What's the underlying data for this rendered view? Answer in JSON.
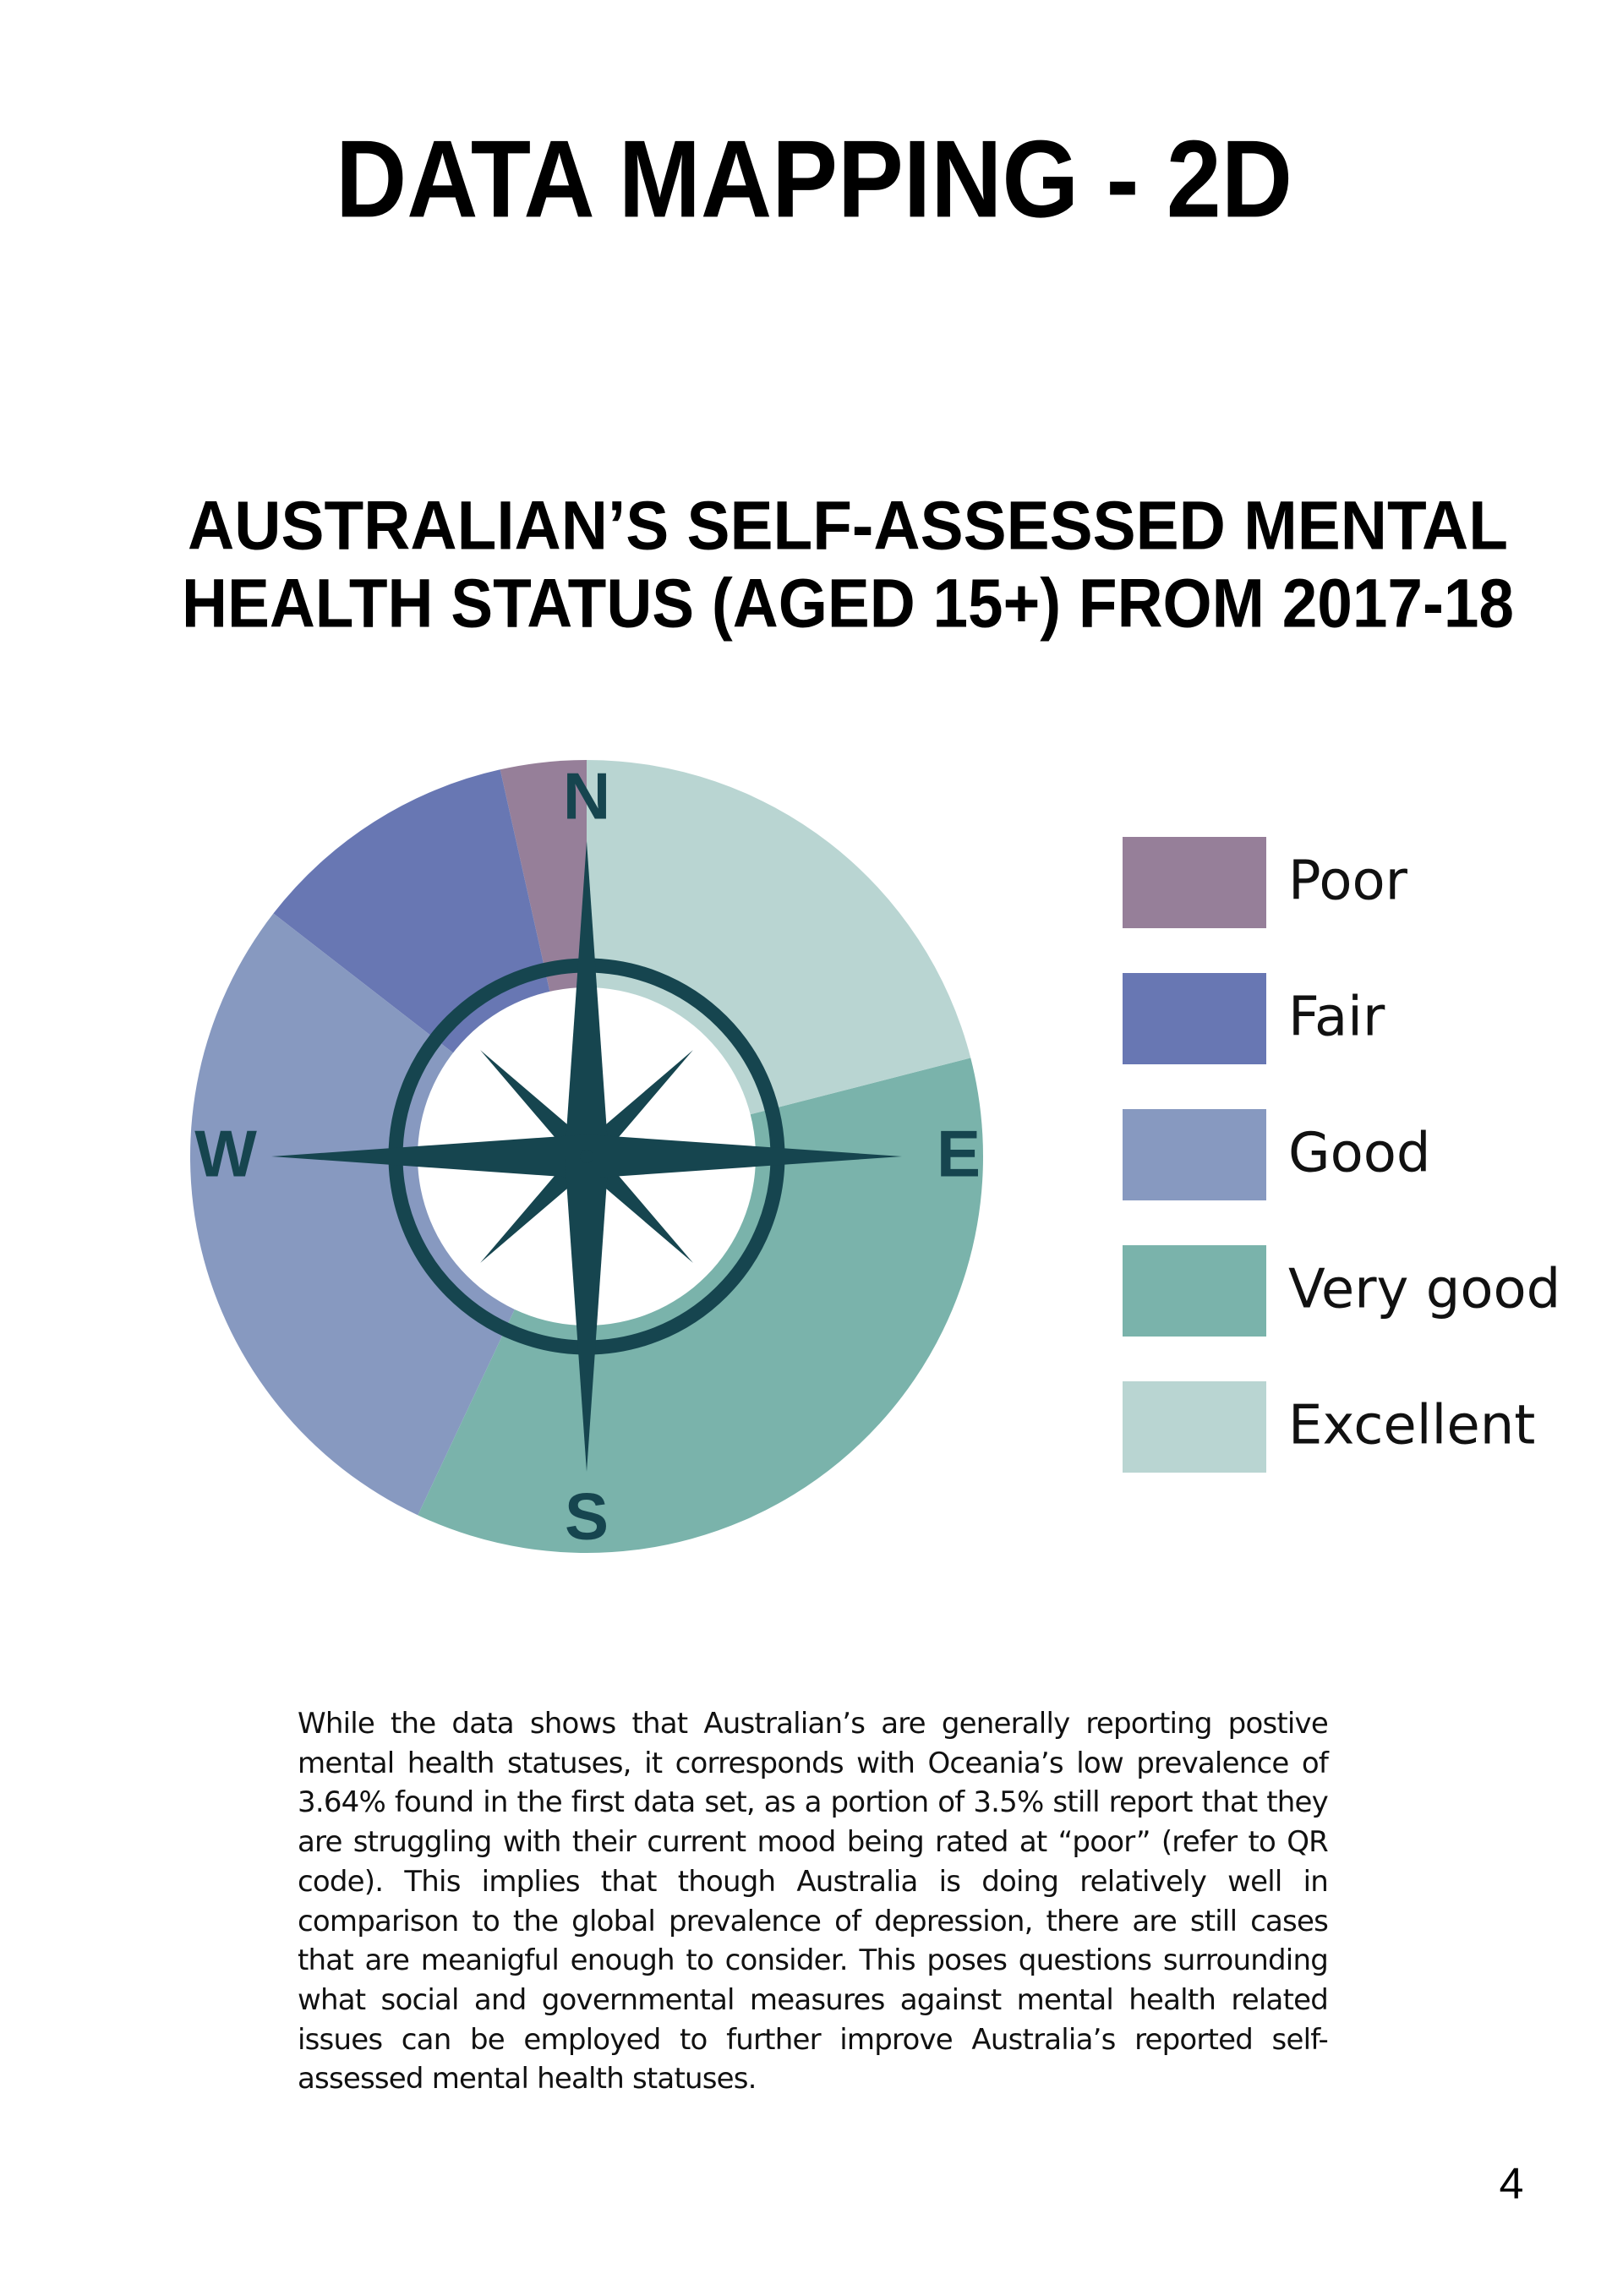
{
  "header": {
    "title": "DATA MAPPING - 2D"
  },
  "chart_data": {
    "type": "pie",
    "title_lines": [
      "AUSTRALIAN’S SELF-ASSESSED MENTAL",
      "HEALTH STATUS (AGED 15+) FROM 2017-18"
    ],
    "categories": [
      "Poor",
      "Fair",
      "Good",
      "Very good",
      "Excellent"
    ],
    "values": [
      3.5,
      11,
      28.5,
      36,
      21
    ],
    "colors": [
      "#967f99",
      "#6877b3",
      "#8799c0",
      "#7ab3ab",
      "#b9d5d2"
    ],
    "legend": "right",
    "compass": [
      "N",
      "E",
      "S",
      "W"
    ]
  },
  "body": {
    "paragraph": "While the data shows that Australian’s are generally reporting postive mental health statuses, it corresponds with Oceania’s low prevalence of 3.64% found in the first data set, as a portion of 3.5% still report that they are struggling with their current mood being rated at “poor” (refer to QR code). This implies that though Australia is doing relatively well in comparison to the global prevalence of depression, there are still cases that are meanigful enough to consider. This poses questions surrounding what social and governmental measures against mental health related issues can be employed to further improve Australia’s reported self-assessed mental health statuses."
  },
  "footer": {
    "page_number": "4"
  }
}
